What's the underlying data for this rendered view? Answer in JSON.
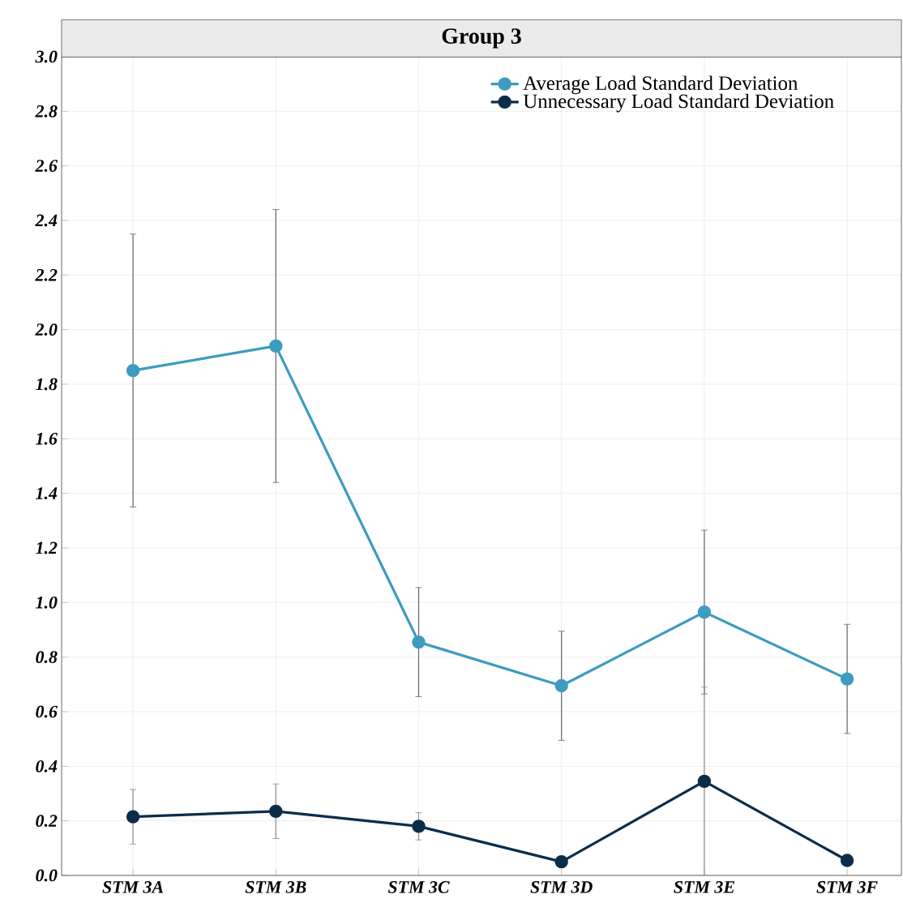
{
  "chart_data": {
    "type": "line",
    "title": "Group 3",
    "categories": [
      "STM 3A",
      "STM 3B",
      "STM 3C",
      "STM 3D",
      "STM 3E",
      "STM 3F"
    ],
    "series": [
      {
        "name": "Average Load Standard Deviation",
        "color": "#3d9cc0",
        "values": [
          1.85,
          1.94,
          0.855,
          0.695,
          0.965,
          0.72
        ],
        "errors": [
          0.5,
          0.5,
          0.2,
          0.2,
          0.3,
          0.2
        ]
      },
      {
        "name": "Unnecessary Load Standard Deviation",
        "color": "#0b2d4a",
        "values": [
          0.215,
          0.235,
          0.18,
          0.05,
          0.345,
          0.055
        ],
        "errors": [
          0.1,
          0.1,
          0.05,
          null,
          0.345,
          null
        ]
      }
    ],
    "ylim": [
      0,
      3
    ],
    "yticks": [
      {
        "value": 0,
        "label": "0.0"
      },
      0.2,
      0.4,
      0.6,
      0.8,
      {
        "value": 1,
        "label": "1.0"
      },
      1.2,
      1.4,
      1.6,
      1.8,
      {
        "value": 2,
        "label": "2.0"
      },
      2.2,
      2.4,
      2.6,
      2.8,
      {
        "value": 3,
        "label": "3.0"
      }
    ],
    "grid": true,
    "legend": "top right",
    "marker": "circle",
    "line_style": "solid"
  }
}
